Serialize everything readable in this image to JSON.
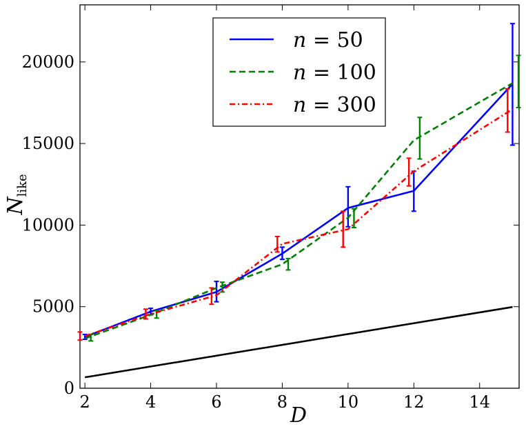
{
  "chart_data": {
    "type": "line",
    "xlabel": "D",
    "ylabel_main": "N",
    "ylabel_sub": "like",
    "xlim": [
      1.85,
      15.2
    ],
    "ylim": [
      0,
      23500
    ],
    "xticks": [
      2,
      4,
      6,
      8,
      10,
      12,
      14
    ],
    "yticks": [
      0,
      5000,
      10000,
      15000,
      20000
    ],
    "grid": false,
    "legend_position": "top-center",
    "series": [
      {
        "name": "n = 50",
        "legend_var": "n",
        "legend_value": "50",
        "color": "#0000ff",
        "style": "solid",
        "x": [
          2,
          4,
          6,
          8,
          10,
          12,
          15
        ],
        "y": [
          3150,
          4700,
          5900,
          8250,
          11050,
          12100,
          18650
        ],
        "err_x": [
          2.0,
          4.0,
          6.0,
          8.0,
          10.0,
          12.0,
          15.0
        ],
        "err_low": [
          3000,
          4500,
          5300,
          7900,
          9900,
          10850,
          14900
        ],
        "err_high": [
          3300,
          4900,
          6550,
          8650,
          12350,
          13300,
          22350
        ]
      },
      {
        "name": "n = 100",
        "legend_var": "n",
        "legend_value": "100",
        "color": "#008000",
        "style": "dashed",
        "x": [
          2,
          4,
          6,
          8,
          10,
          12,
          15
        ],
        "y": [
          3050,
          4500,
          6150,
          7600,
          10450,
          15200,
          18700
        ],
        "err_x": [
          2.18,
          4.18,
          6.18,
          8.18,
          10.18,
          12.18,
          15.18
        ],
        "err_low": [
          2900,
          4300,
          5900,
          7250,
          9850,
          14050,
          17200
        ],
        "err_high": [
          3300,
          4750,
          6500,
          7950,
          11000,
          16600,
          20400
        ]
      },
      {
        "name": "n = 300",
        "legend_var": "n",
        "legend_value": "300",
        "color": "#ff0000",
        "style": "dashdot",
        "x": [
          2,
          4,
          6,
          8,
          10,
          12,
          15
        ],
        "y": [
          3200,
          4550,
          5700,
          8850,
          9750,
          13300,
          17100
        ],
        "err_x": [
          1.85,
          3.85,
          5.85,
          7.85,
          9.85,
          11.85,
          14.85
        ],
        "err_low": [
          2950,
          4250,
          5150,
          8350,
          8650,
          12400,
          15700
        ],
        "err_high": [
          3450,
          4850,
          6150,
          9300,
          10850,
          14100,
          18350
        ]
      },
      {
        "name": "",
        "color": "#000000",
        "style": "solid",
        "x": [
          2,
          15
        ],
        "y": [
          670,
          4980
        ]
      }
    ]
  }
}
